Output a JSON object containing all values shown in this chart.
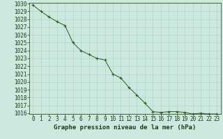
{
  "x": [
    0,
    1,
    2,
    3,
    4,
    5,
    6,
    7,
    8,
    9,
    10,
    11,
    12,
    13,
    14,
    15,
    16,
    17,
    18,
    19,
    20,
    21,
    22,
    23
  ],
  "y": [
    1029.8,
    1029.0,
    1028.3,
    1027.7,
    1027.2,
    1025.0,
    1024.0,
    1023.5,
    1023.0,
    1022.8,
    1021.0,
    1020.5,
    1019.3,
    1018.3,
    1017.3,
    1016.2,
    1016.1,
    1016.2,
    1016.2,
    1016.1,
    1015.9,
    1016.0,
    1015.9,
    1015.9
  ],
  "ylim": [
    1016,
    1030
  ],
  "xlim": [
    -0.5,
    23.5
  ],
  "yticks": [
    1016,
    1017,
    1018,
    1019,
    1020,
    1021,
    1022,
    1023,
    1024,
    1025,
    1026,
    1027,
    1028,
    1029,
    1030
  ],
  "xticks": [
    0,
    1,
    2,
    3,
    4,
    5,
    6,
    7,
    8,
    9,
    10,
    11,
    12,
    13,
    14,
    15,
    16,
    17,
    18,
    19,
    20,
    21,
    22,
    23
  ],
  "line_color": "#2d5a1b",
  "marker": "+",
  "marker_color": "#2d5a1b",
  "bg_color": "#cce9e0",
  "grid_color": "#aacfbf",
  "xlabel": "Graphe pression niveau de la mer (hPa)",
  "xlabel_color": "#1a3d0f",
  "tick_color": "#1a3d0f",
  "label_fontsize": 5.5,
  "xlabel_fontsize": 6.5
}
